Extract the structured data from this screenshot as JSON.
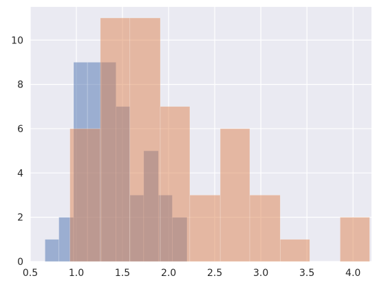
{
  "chart_data": {
    "type": "histogram",
    "title": "",
    "xlabel": "",
    "ylabel": "",
    "xlim": [
      0.5,
      4.2
    ],
    "ylim": [
      0,
      11.5
    ],
    "grid": true,
    "legend": "none",
    "xticks": [
      0.5,
      1.0,
      1.5,
      2.0,
      2.5,
      3.0,
      3.5,
      4.0
    ],
    "xtick_labels": [
      "0.5",
      "1.0",
      "1.5",
      "2.0",
      "2.5",
      "3.0",
      "3.5",
      "4.0"
    ],
    "yticks": [
      0,
      2,
      4,
      6,
      8,
      10
    ],
    "ytick_labels": [
      "0",
      "2",
      "4",
      "6",
      "8",
      "10"
    ],
    "colors": {
      "background": "#EAEAF2",
      "grid": "#FFFFFF",
      "series_1": "#4C72B0",
      "series_2": "#DD8452"
    },
    "series": [
      {
        "color": "#4C72B0",
        "opacity": 0.5,
        "bins": [
          {
            "x0": 0.66,
            "x1": 0.81,
            "count": 1
          },
          {
            "x0": 0.81,
            "x1": 0.97,
            "count": 2
          },
          {
            "x0": 0.97,
            "x1": 1.12,
            "count": 9
          },
          {
            "x0": 1.12,
            "x1": 1.27,
            "count": 9
          },
          {
            "x0": 1.27,
            "x1": 1.43,
            "count": 9
          },
          {
            "x0": 1.43,
            "x1": 1.58,
            "count": 7
          },
          {
            "x0": 1.58,
            "x1": 1.73,
            "count": 3
          },
          {
            "x0": 1.73,
            "x1": 1.89,
            "count": 5
          },
          {
            "x0": 1.89,
            "x1": 2.04,
            "count": 3
          },
          {
            "x0": 2.04,
            "x1": 2.2,
            "count": 2
          }
        ]
      },
      {
        "color": "#DD8452",
        "opacity": 0.5,
        "bins": [
          {
            "x0": 0.93,
            "x1": 1.26,
            "count": 6
          },
          {
            "x0": 1.26,
            "x1": 1.58,
            "count": 11
          },
          {
            "x0": 1.58,
            "x1": 1.91,
            "count": 11
          },
          {
            "x0": 1.91,
            "x1": 2.23,
            "count": 7
          },
          {
            "x0": 2.23,
            "x1": 2.56,
            "count": 3
          },
          {
            "x0": 2.56,
            "x1": 2.88,
            "count": 6
          },
          {
            "x0": 2.88,
            "x1": 3.21,
            "count": 3
          },
          {
            "x0": 3.21,
            "x1": 3.53,
            "count": 1
          },
          {
            "x0": 3.53,
            "x1": 3.86,
            "count": 0
          },
          {
            "x0": 3.86,
            "x1": 4.18,
            "count": 2
          }
        ]
      }
    ]
  }
}
